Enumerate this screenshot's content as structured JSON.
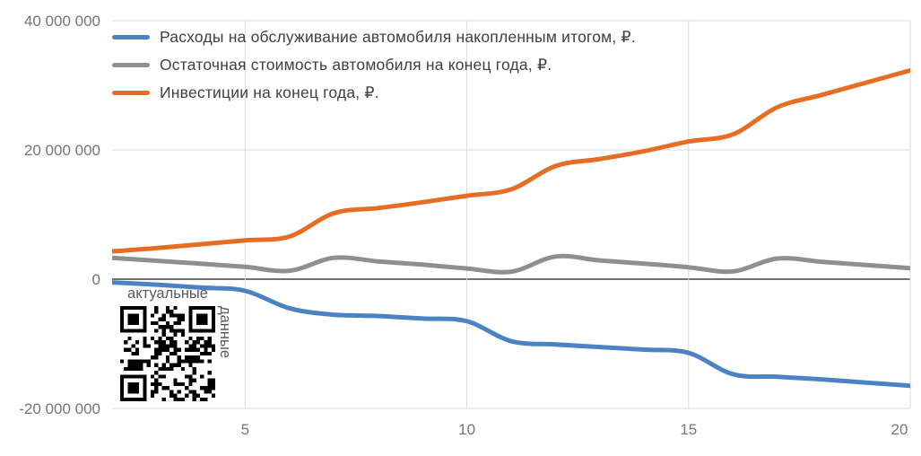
{
  "qr_note": {
    "top_label": "актуальные",
    "side_label": "данные"
  },
  "colors": {
    "background": "#ffffff",
    "gridline": "#dadada",
    "zero_line": "#424242",
    "axis_label": "#757575",
    "legend_text": "#3f3f3f",
    "qr_text": "#5a5a5a",
    "qr_modules": "#000000"
  },
  "chart_data": {
    "type": "line",
    "smooth": true,
    "grid": true,
    "legend_position": "top-left-inside",
    "xlim": [
      2,
      20
    ],
    "ylim": [
      -20000000,
      40000000
    ],
    "x_ticks": [
      5,
      10,
      15,
      20
    ],
    "y_ticks": [
      {
        "value": 40000000,
        "label": "40 000 000"
      },
      {
        "value": 20000000,
        "label": "20 000 000"
      },
      {
        "value": 0,
        "label": "0"
      },
      {
        "value": -20000000,
        "label": "-20 000 000"
      }
    ],
    "x": [
      2,
      3,
      4,
      5,
      6,
      7,
      8,
      9,
      10,
      11,
      12,
      13,
      14,
      15,
      16,
      17,
      18,
      19,
      20
    ],
    "series": [
      {
        "name": "Расходы на обслуживание автомобиля накопленным итогом, ₽.",
        "color": "#4a82c4",
        "values": [
          -500000,
          -850000,
          -1300000,
          -1800000,
          -4500000,
          -5500000,
          -5700000,
          -6100000,
          -6500000,
          -9600000,
          -10100000,
          -10500000,
          -10900000,
          -11400000,
          -14700000,
          -15100000,
          -15500000,
          -16000000,
          -16500000
        ]
      },
      {
        "name": "Остаточная стоимость автомобиля на конец года, ₽.",
        "color": "#8f8f8f",
        "values": [
          3300000,
          2850000,
          2400000,
          1900000,
          1300000,
          3300000,
          2750000,
          2250000,
          1650000,
          1150000,
          3500000,
          2900000,
          2400000,
          1850000,
          1200000,
          3200000,
          2700000,
          2200000,
          1700000
        ]
      },
      {
        "name": "Инвестиции на конец года, ₽.",
        "color": "#e86d24",
        "values": [
          4300000,
          4800000,
          5400000,
          6000000,
          6600000,
          10200000,
          11000000,
          11900000,
          12900000,
          13900000,
          17500000,
          18600000,
          19800000,
          21300000,
          22400000,
          26600000,
          28500000,
          30400000,
          32300000
        ]
      }
    ]
  }
}
